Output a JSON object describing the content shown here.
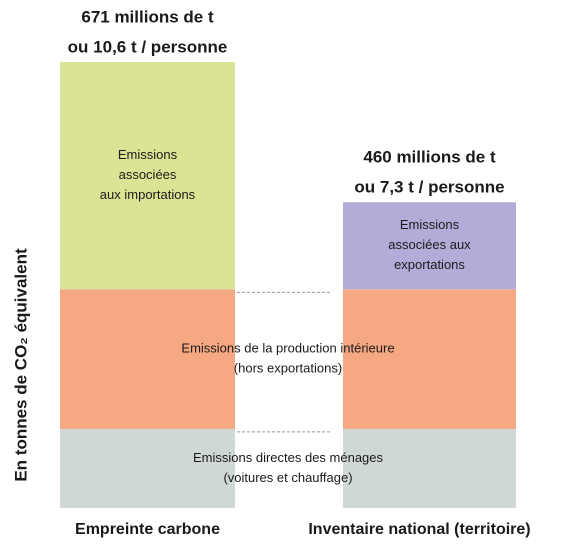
{
  "chart_data": {
    "type": "bar",
    "stacked": true,
    "y_label": "En tonnes de CO₂ équivalent",
    "categories": [
      "Empreinte carbone",
      "Inventaire national (territoire)"
    ],
    "total_labels": [
      [
        "671 millions de t",
        "ou 10,6 t / personne"
      ],
      [
        "460 millions de t",
        "ou 7,3 t / personne"
      ]
    ],
    "series": [
      {
        "name": [
          "Emissions directes des ménages",
          "(voitures et chauffage)"
        ],
        "color": "#cfd8d2",
        "values": [
          119,
          119
        ]
      },
      {
        "name": [
          "Emissions de la production intérieure",
          "(hors exportations)"
        ],
        "color": "#f5a882",
        "values": [
          210,
          210
        ]
      },
      {
        "name": [
          "Emissions",
          "associées",
          "aux importations"
        ],
        "color": "#dbe495",
        "values": [
          342,
          null
        ]
      },
      {
        "name": [
          "Emissions",
          "associées aux",
          "exportations"
        ],
        "color": "#b3acd8",
        "values": [
          null,
          131
        ]
      }
    ]
  }
}
